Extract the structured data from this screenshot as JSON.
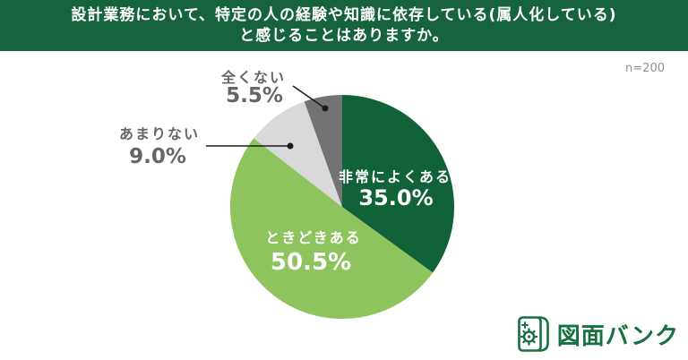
{
  "header": {
    "line1": "設計業務において、特定の人の経験や知識に依存している(属人化している)",
    "line2": "と感じることはありますか。",
    "bg_color": "#17623f",
    "text_color": "#ffffff"
  },
  "sample_size_label": "n=200",
  "chart_data": {
    "type": "pie",
    "title": "設計業務において、特定の人の経験や知識に依存している(属人化している)と感じることはありますか。",
    "sample_size": "n=200",
    "start_angle_deg": 0,
    "direction": "clockwise",
    "legend_position": "none",
    "segments": [
      {
        "key": "very-often",
        "label": "非常によくある",
        "value": 35.0,
        "percent_label": "35.0%",
        "color": "#116239",
        "label_placement": "inside"
      },
      {
        "key": "sometimes",
        "label": "ときどきある",
        "value": 50.5,
        "percent_label": "50.5%",
        "color": "#8dc45e",
        "label_placement": "inside"
      },
      {
        "key": "rarely",
        "label": "あまりない",
        "value": 9.0,
        "percent_label": "9.0%",
        "color": "#d9d9d9",
        "label_placement": "outside"
      },
      {
        "key": "never",
        "label": "全くない",
        "value": 5.5,
        "percent_label": "5.5%",
        "color": "#737373",
        "label_placement": "outside"
      }
    ]
  },
  "footer": {
    "brand": "図面バンク",
    "brand_color": "#15713f"
  }
}
